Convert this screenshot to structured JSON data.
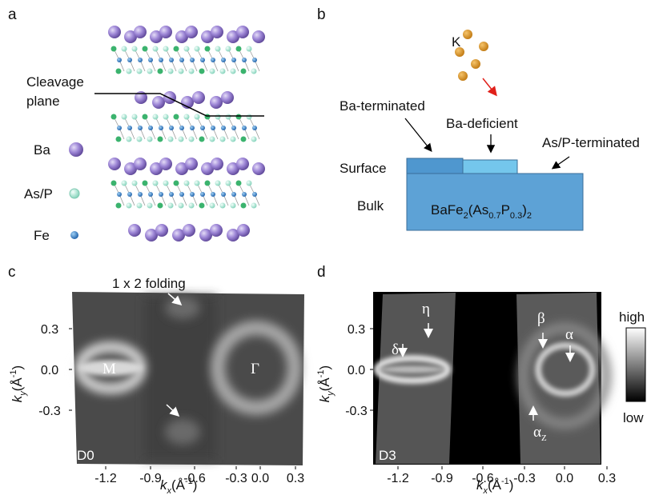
{
  "panel_labels": [
    "a",
    "b",
    "c",
    "d"
  ],
  "structure": {
    "cleavage": [
      "Cleavage",
      "plane"
    ],
    "legend": [
      "Ba",
      "As/P",
      "Fe"
    ]
  },
  "schematic": {
    "adsorbate": "K",
    "surface_types": [
      "Ba-terminated",
      "Ba-deficient",
      "As/P-terminated"
    ],
    "layers": [
      "Surface",
      "Bulk"
    ],
    "formula": [
      "BaFe",
      "2",
      "(As",
      "0.7",
      "P",
      "0.3",
      ")",
      "2"
    ]
  },
  "axis": {
    "x": [
      "k",
      "x",
      "(Å",
      "-1",
      ")"
    ],
    "y": [
      "k",
      "y",
      "(Å",
      "-1",
      ")"
    ]
  },
  "maps": [
    {
      "tag": "D0",
      "annotation": "1 x 2 folding",
      "points": [
        "M",
        "Γ"
      ],
      "xticks": [
        "-1.2",
        "-0.9",
        "-0.6",
        "-0.3",
        "0.0",
        "0.3"
      ],
      "yticks": [
        "0.3",
        "0.0",
        "-0.3"
      ]
    },
    {
      "tag": "D3",
      "bands": [
        "δ",
        "η",
        "β",
        "α",
        "α",
        "Z"
      ],
      "xticks": [
        "-1.2",
        "-0.9",
        "-0.6",
        "-0.3",
        "0.0",
        "0.3"
      ],
      "yticks": [
        "0.3",
        "0.0",
        "-0.3"
      ]
    }
  ],
  "colorbar": [
    "high",
    "low"
  ]
}
